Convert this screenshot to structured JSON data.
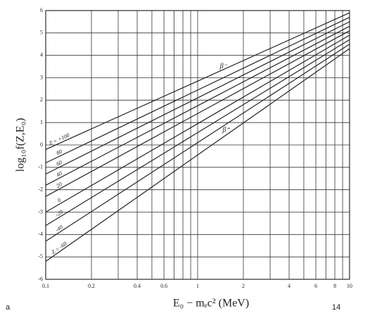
{
  "chart_data": {
    "type": "line",
    "x_label": "E₀ − mₑc² (MeV)",
    "y_label": "log₁₀f(Z,E₀)",
    "x": [
      0.1,
      1,
      10
    ],
    "series": [
      {
        "name": "Z = +100",
        "color": "#222222",
        "values": [
          -0.2,
          2.85,
          5.9
        ]
      },
      {
        "name": "80",
        "color": "#222222",
        "values": [
          -0.8,
          2.45,
          5.7
        ]
      },
      {
        "name": "60",
        "color": "#222222",
        "values": [
          -1.3,
          2.1,
          5.5
        ]
      },
      {
        "name": "40",
        "color": "#222222",
        "values": [
          -1.8,
          1.75,
          5.3
        ]
      },
      {
        "name": "20",
        "color": "#222222",
        "values": [
          -2.3,
          1.4,
          5.1
        ]
      },
      {
        "name": "0",
        "color": "#222222",
        "values": [
          -3.0,
          0.95,
          4.9
        ]
      },
      {
        "name": "-20",
        "color": "#222222",
        "values": [
          -3.6,
          0.55,
          4.7
        ]
      },
      {
        "name": "-40",
        "color": "#222222",
        "values": [
          -4.3,
          0.1,
          4.5
        ]
      },
      {
        "name": "Z = -60",
        "color": "#222222",
        "values": [
          -5.2,
          -0.45,
          4.3
        ]
      }
    ],
    "annotations": [
      {
        "text": "β⁻",
        "x": 1.48,
        "y": 3.5
      },
      {
        "text": "β⁺",
        "x": 1.54,
        "y": 0.66
      }
    ],
    "xscale": "log",
    "xlim": [
      0.1,
      10
    ],
    "xticks": [
      0.1,
      0.2,
      0.4,
      0.6,
      1,
      2,
      4,
      6,
      8,
      10
    ],
    "xminorticks": [
      0.3,
      0.5,
      0.7,
      0.8,
      0.9,
      3,
      5,
      7,
      9
    ],
    "ylim": [
      -6,
      6
    ],
    "yticks": [
      -6,
      -5,
      -4,
      -3,
      -2,
      -1,
      0,
      1,
      2,
      3,
      4,
      5,
      6
    ],
    "grid": true
  },
  "slide": {
    "corner_left": "a",
    "page_number": "14"
  }
}
